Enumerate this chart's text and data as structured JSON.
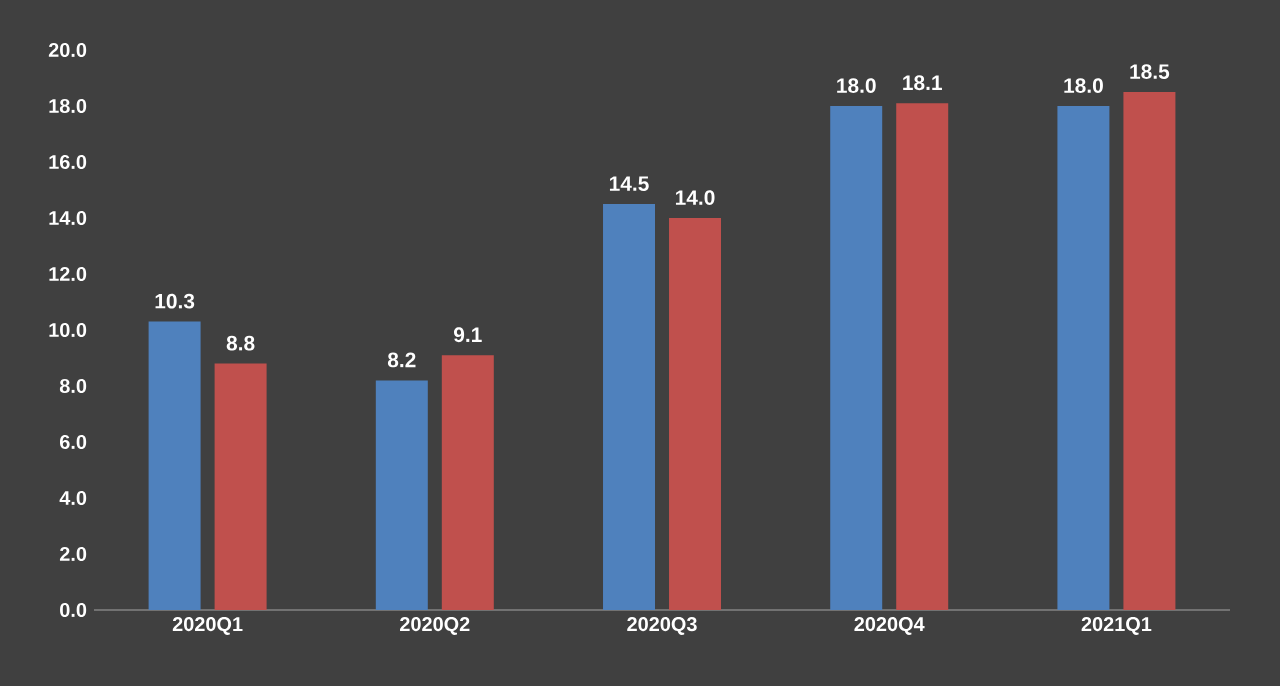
{
  "chart_data": {
    "type": "bar",
    "categories": [
      "2020Q1",
      "2020Q2",
      "2020Q3",
      "2020Q4",
      "2021Q1"
    ],
    "series": [
      {
        "color": "#4f81bd",
        "values": [
          10.3,
          8.2,
          14.5,
          18.0,
          18.0
        ],
        "value_labels": [
          "10.3",
          "8.2",
          "14.5",
          "18.0",
          "18.0"
        ]
      },
      {
        "color": "#c0504d",
        "values": [
          8.8,
          9.1,
          14.0,
          18.1,
          18.5
        ],
        "value_labels": [
          "8.8",
          "9.1",
          "14.0",
          "18.1",
          "18.5"
        ]
      }
    ],
    "ylim": [
      0,
      20
    ],
    "yticks": [
      {
        "value": 0,
        "label": "0.0"
      },
      {
        "value": 2,
        "label": "2.0"
      },
      {
        "value": 4,
        "label": "4.0"
      },
      {
        "value": 6,
        "label": "6.0"
      },
      {
        "value": 8,
        "label": "8.0"
      },
      {
        "value": 10,
        "label": "10.0"
      },
      {
        "value": 12,
        "label": "12.0"
      },
      {
        "value": 14,
        "label": "14.0"
      },
      {
        "value": 16,
        "label": "16.0"
      },
      {
        "value": 18,
        "label": "18.0"
      },
      {
        "value": 20,
        "label": "20.0"
      }
    ],
    "grid": false
  }
}
